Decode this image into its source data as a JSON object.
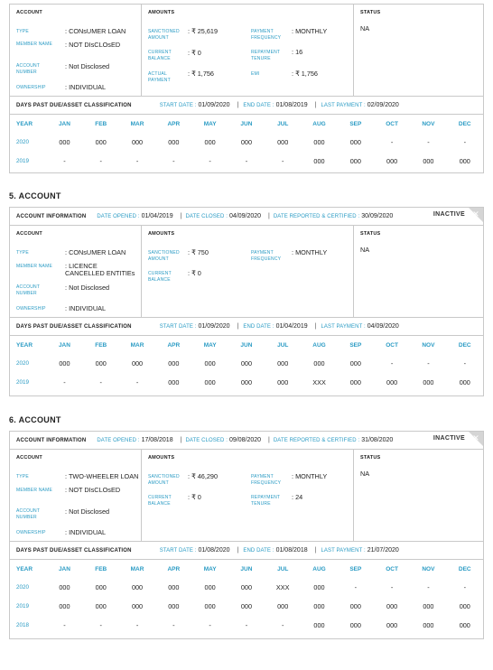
{
  "labels": {
    "account": "ACCOUNT",
    "amounts": "AMOUNTS",
    "status": "STATUS",
    "type": "TYPE",
    "member_name": "MEMBER NAME",
    "account_number": "ACCOUNT NUMBER",
    "ownership": "OWNERSHIP",
    "sanctioned_amount": "SANCTIONED AMOUNT",
    "current_balance": "CURRENT BALANCE",
    "actual_payment": "ACTUAL PAYMENT",
    "payment_frequency": "PAYMENT FREQUENCY",
    "repayment_tenure": "REPAYMENT TENURE",
    "emi": "EMI",
    "account_information": "ACCOUNT INFORMATION",
    "date_opened": "DATE OPENED :",
    "date_closed": "DATE CLOSED :",
    "date_reported": "DATE REPORTED & CERTIFIED :",
    "dpd_title": "DAYS PAST DUE/ASSET CLASSIFICATION",
    "start_date": "START DATE :",
    "end_date": "END DATE :",
    "last_payment": "LAST PAYMENT :",
    "months": [
      "YEAR",
      "JAN",
      "FEB",
      "MAR",
      "APR",
      "MAY",
      "JUN",
      "JUL",
      "AUG",
      "SEP",
      "OCT",
      "NOV",
      "DEC"
    ]
  },
  "accounts": [
    {
      "section_title": "",
      "info": null,
      "type": "CONsUMER LOAN",
      "member_name": "NOT DIsCLOsED",
      "account_number": "Not Disclosed",
      "ownership": "INDIVIDUAL",
      "sanctioned_amount": "₹ 25,619",
      "current_balance": "₹ 0",
      "actual_payment": "₹ 1,756",
      "payment_frequency": "MONTHLY",
      "repayment_tenure": "16",
      "emi": "₹ 1,756",
      "status": "NA",
      "dpd": {
        "start_date": "01/09/2020",
        "end_date": "01/08/2019",
        "last_payment": "02/09/2020",
        "rows": [
          {
            "year": "2020",
            "values": [
              "000",
              "000",
              "000",
              "000",
              "000",
              "000",
              "000",
              "000",
              "000",
              "-",
              "-",
              "-"
            ]
          },
          {
            "year": "2019",
            "values": [
              "-",
              "-",
              "-",
              "-",
              "-",
              "-",
              "-",
              "000",
              "000",
              "000",
              "000",
              "000"
            ]
          }
        ]
      }
    },
    {
      "section_title": "5. ACCOUNT",
      "info": {
        "date_opened": "01/04/2019",
        "date_closed": "04/09/2020",
        "date_reported": "30/09/2020",
        "badge": "INACTIVE"
      },
      "type": "CONsUMER LOAN",
      "member_name": "LICENCE CANCELLED ENTITIEs",
      "account_number": "Not Disclosed",
      "ownership": "INDIVIDUAL",
      "sanctioned_amount": "₹ 750",
      "current_balance": "₹ 0",
      "payment_frequency": "MONTHLY",
      "status": "NA",
      "dpd": {
        "start_date": "01/09/2020",
        "end_date": "01/04/2019",
        "last_payment": "04/09/2020",
        "rows": [
          {
            "year": "2020",
            "values": [
              "000",
              "000",
              "000",
              "000",
              "000",
              "000",
              "000",
              "000",
              "000",
              "-",
              "-",
              "-"
            ]
          },
          {
            "year": "2019",
            "values": [
              "-",
              "-",
              "-",
              "000",
              "000",
              "000",
              "000",
              "XXX",
              "000",
              "000",
              "000",
              "000"
            ]
          }
        ]
      }
    },
    {
      "section_title": "6. ACCOUNT",
      "info": {
        "date_opened": "17/08/2018",
        "date_closed": "09/08/2020",
        "date_reported": "31/08/2020",
        "badge": "INACTIVE"
      },
      "type": "TWO-WHEELER LOAN",
      "member_name": "NOT DIsCLOsED",
      "account_number": "Not Disclosed",
      "ownership": "INDIVIDUAL",
      "sanctioned_amount": "₹ 46,290",
      "current_balance": "₹ 0",
      "payment_frequency": "MONTHLY",
      "repayment_tenure": "24",
      "status": "NA",
      "dpd": {
        "start_date": "01/08/2020",
        "end_date": "01/08/2018",
        "last_payment": "21/07/2020",
        "rows": [
          {
            "year": "2020",
            "values": [
              "000",
              "000",
              "000",
              "000",
              "000",
              "000",
              "XXX",
              "000",
              "-",
              "-",
              "-",
              "-"
            ]
          },
          {
            "year": "2019",
            "values": [
              "000",
              "000",
              "000",
              "000",
              "000",
              "000",
              "000",
              "000",
              "000",
              "000",
              "000",
              "000"
            ]
          },
          {
            "year": "2018",
            "values": [
              "-",
              "-",
              "-",
              "-",
              "-",
              "-",
              "-",
              "000",
              "000",
              "000",
              "000",
              "000"
            ]
          }
        ]
      }
    }
  ]
}
